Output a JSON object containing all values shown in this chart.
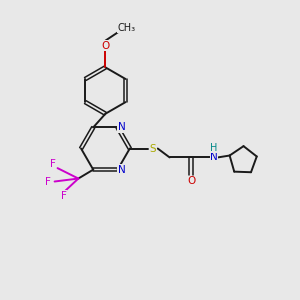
{
  "background_color": "#e8e8e8",
  "bond_color": "#1a1a1a",
  "N_color": "#0000cc",
  "O_color": "#cc0000",
  "S_color": "#aaaa00",
  "F_color": "#cc00cc",
  "H_color": "#008888",
  "figsize": [
    3.0,
    3.0
  ],
  "dpi": 100,
  "xlim": [
    0,
    10
  ],
  "ylim": [
    0,
    10
  ]
}
